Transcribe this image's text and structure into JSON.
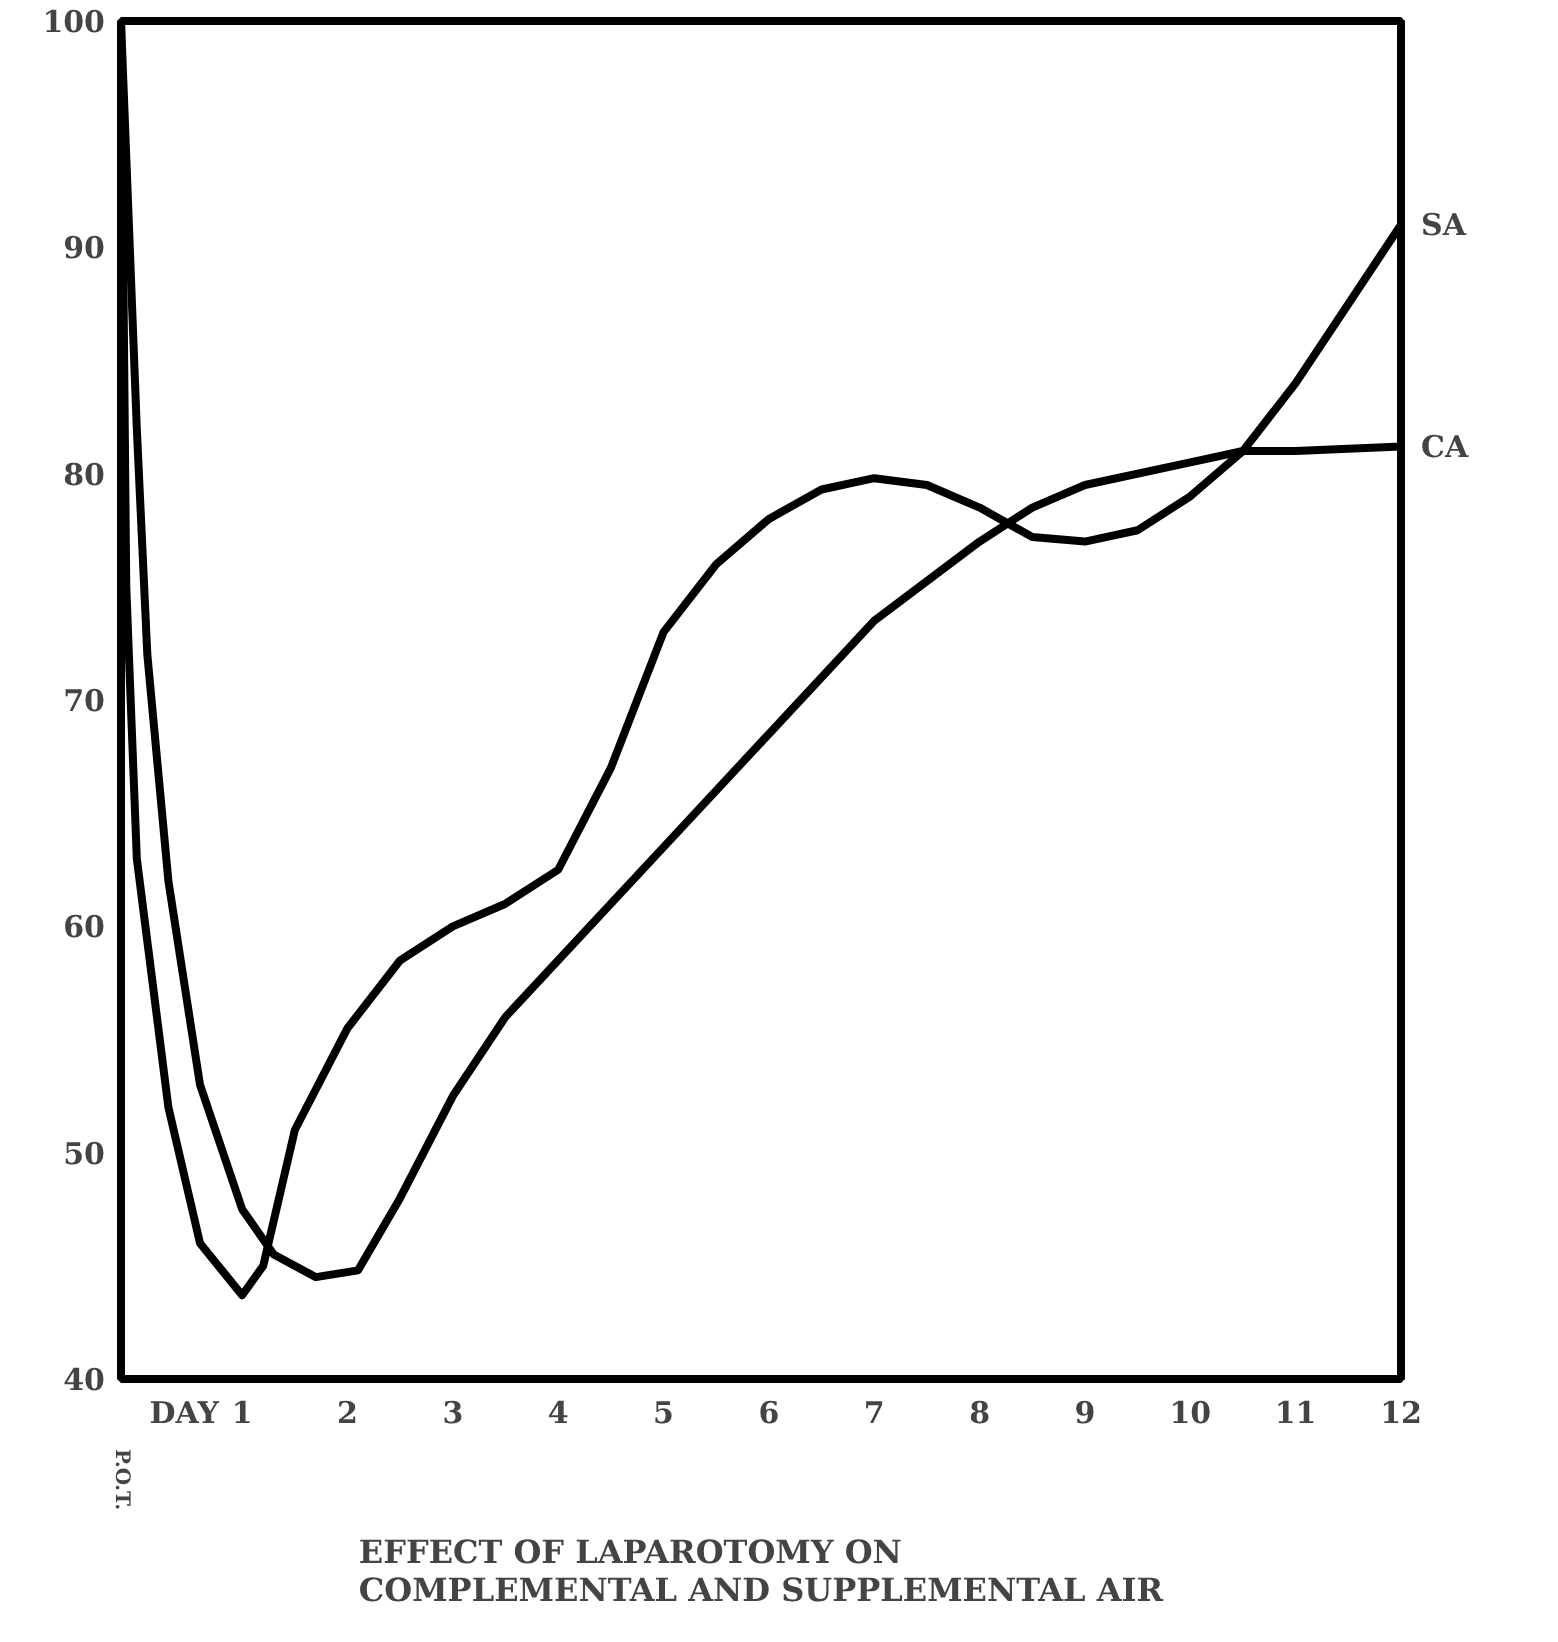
{
  "chart_data": {
    "type": "line",
    "title": "EFFECT OF LAPAROTOMY ON\nCOMPLEMENTAL AND SUPPLEMENTAL AIR",
    "annotations": [
      "P.O.T."
    ],
    "xlim": [
      -0.15,
      12
    ],
    "xticks": [
      {
        "value": 0.45,
        "label": "DAY"
      },
      1,
      2,
      3,
      4,
      5,
      6,
      7,
      8,
      9,
      10,
      11,
      12
    ],
    "ylim": [
      40,
      100
    ],
    "yticks": [
      40,
      50,
      60,
      70,
      80,
      90,
      100
    ],
    "grid": false,
    "marker": "none",
    "line_style": "solid",
    "series": [
      {
        "name": "SA",
        "color": "#000000",
        "x": [
          -0.15,
          -0.1,
          0,
          0.3,
          0.6,
          1,
          1.2,
          1.5,
          2,
          2.5,
          3,
          3.5,
          4,
          4.5,
          5,
          5.5,
          6,
          6.5,
          7,
          7.5,
          8,
          8.5,
          9,
          9.5,
          10,
          10.5,
          11,
          11.5,
          12
        ],
        "values": [
          100,
          75,
          63,
          52,
          46,
          43.7,
          45,
          51,
          55.5,
          58.5,
          60,
          61,
          62.5,
          67,
          73,
          76,
          78,
          79.3,
          79.8,
          79.5,
          78.5,
          77.2,
          77,
          77.5,
          79,
          81,
          84,
          87.5,
          91
        ]
      },
      {
        "name": "CA",
        "color": "#000000",
        "x": [
          -0.15,
          0,
          0.1,
          0.3,
          0.6,
          1,
          1.3,
          1.7,
          2.1,
          2.5,
          3,
          3.5,
          4,
          5,
          6,
          7,
          8,
          8.5,
          9,
          10,
          10.5,
          11,
          12
        ],
        "values": [
          100,
          82,
          72,
          62,
          53,
          47.5,
          45.5,
          44.5,
          44.8,
          48,
          52.5,
          56,
          58.5,
          63.5,
          68.5,
          73.5,
          77,
          78.5,
          79.5,
          80.5,
          81,
          81,
          81.2
        ]
      }
    ]
  }
}
